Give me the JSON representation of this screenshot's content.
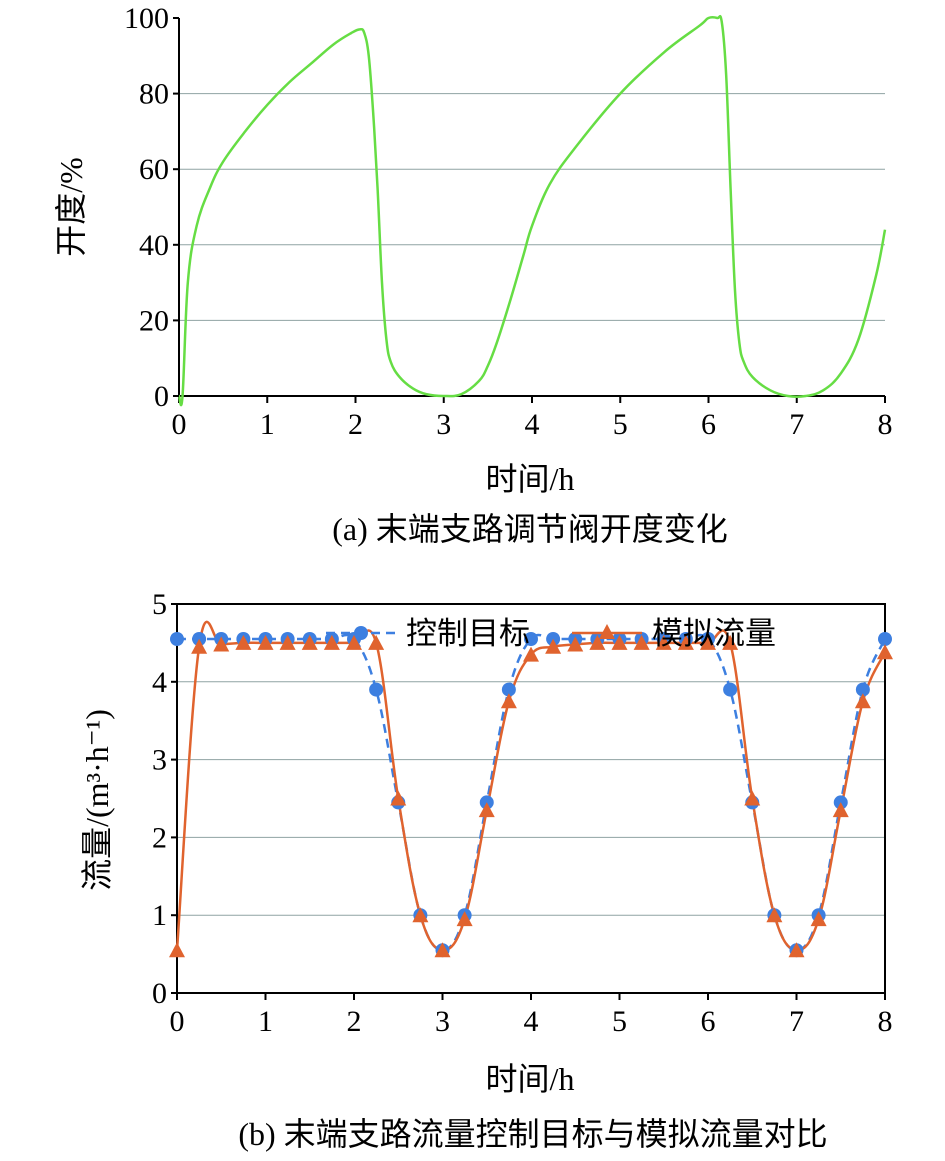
{
  "chart_data": [
    {
      "type": "line",
      "id": "a",
      "caption": "(a) 末端支路调节阀开度变化",
      "xlabel": "时间/h",
      "ylabel": "开度/%",
      "xlim": [
        0,
        8
      ],
      "ylim": [
        0,
        100
      ],
      "xticks": [
        "0",
        "1",
        "2",
        "3",
        "4",
        "5",
        "6",
        "7",
        "8"
      ],
      "yticks": [
        "0",
        "20",
        "40",
        "60",
        "80",
        "100"
      ],
      "grid": true,
      "series": [
        {
          "color": "#66dd44",
          "x": [
            0,
            0.04,
            0.1,
            0.2,
            0.35,
            0.5,
            0.75,
            1.0,
            1.25,
            1.5,
            1.75,
            1.95,
            2.05,
            2.1,
            2.15,
            2.2,
            2.25,
            2.3,
            2.35,
            2.4,
            2.5,
            2.65,
            2.8,
            3.0,
            3.2,
            3.4,
            3.5,
            3.6,
            3.75,
            3.9,
            4.0,
            4.2,
            4.5,
            5.0,
            5.5,
            5.9,
            6.0,
            6.1,
            6.15,
            6.2,
            6.25,
            6.3,
            6.35,
            6.4,
            6.5,
            6.7,
            6.9,
            7.1,
            7.3,
            7.5,
            7.7,
            7.9,
            8.0
          ],
          "values": [
            0,
            0,
            30,
            45,
            55,
            62,
            70,
            77,
            83,
            88,
            93,
            96,
            97,
            96,
            90,
            75,
            55,
            30,
            15,
            9,
            5,
            2,
            0.5,
            0,
            0.5,
            4,
            8,
            14,
            25,
            37,
            45,
            56,
            66,
            80,
            91,
            98,
            100,
            100,
            99,
            85,
            55,
            28,
            14,
            9,
            5,
            1.5,
            0,
            0,
            1.5,
            6,
            15,
            32,
            44
          ]
        }
      ]
    },
    {
      "type": "line",
      "id": "b",
      "caption": "(b) 末端支路流量控制目标与模拟流量对比",
      "xlabel": "时间/h",
      "ylabel": "流量/(m³·h⁻¹)",
      "xlim": [
        0,
        8
      ],
      "ylim": [
        0,
        5
      ],
      "xticks": [
        "0",
        "1",
        "2",
        "3",
        "4",
        "5",
        "6",
        "7",
        "8"
      ],
      "yticks": [
        "0",
        "1",
        "2",
        "3",
        "4",
        "5"
      ],
      "grid": true,
      "legend": "top-right",
      "series": [
        {
          "name": "控制目标",
          "color": "#3d7fe0",
          "marker": "circle",
          "style": "dashed",
          "x": [
            0,
            0.25,
            0.5,
            0.75,
            1.0,
            1.25,
            1.5,
            1.75,
            2.0,
            2.25,
            2.5,
            2.75,
            3.0,
            3.25,
            3.5,
            3.75,
            4.0,
            4.25,
            4.5,
            4.75,
            5.0,
            5.25,
            5.5,
            5.75,
            6.0,
            6.25,
            6.5,
            6.75,
            7.0,
            7.25,
            7.5,
            7.75,
            8.0
          ],
          "values": [
            4.55,
            4.55,
            4.55,
            4.55,
            4.55,
            4.55,
            4.55,
            4.55,
            4.55,
            3.9,
            2.45,
            1.0,
            0.55,
            1.0,
            2.45,
            3.9,
            4.55,
            4.55,
            4.55,
            4.55,
            4.55,
            4.55,
            4.55,
            4.55,
            4.55,
            3.9,
            2.45,
            1.0,
            0.55,
            1.0,
            2.45,
            3.9,
            4.55
          ]
        },
        {
          "name": "模拟流量",
          "color": "#e0632e",
          "marker": "triangle",
          "style": "solid",
          "x": [
            0,
            0.25,
            0.5,
            0.75,
            1.0,
            1.25,
            1.5,
            1.75,
            2.0,
            2.25,
            2.5,
            2.75,
            3.0,
            3.25,
            3.5,
            3.75,
            4.0,
            4.25,
            4.5,
            4.75,
            5.0,
            5.25,
            5.5,
            5.75,
            6.0,
            6.25,
            6.5,
            6.75,
            7.0,
            7.25,
            7.5,
            7.75,
            8.0
          ],
          "values": [
            0.55,
            4.45,
            4.48,
            4.5,
            4.5,
            4.5,
            4.5,
            4.5,
            4.5,
            4.5,
            2.5,
            1.0,
            0.55,
            0.95,
            2.35,
            3.75,
            4.35,
            4.45,
            4.48,
            4.5,
            4.5,
            4.5,
            4.5,
            4.5,
            4.5,
            4.5,
            2.5,
            1.0,
            0.55,
            0.95,
            2.35,
            3.75,
            4.38
          ]
        }
      ]
    }
  ]
}
